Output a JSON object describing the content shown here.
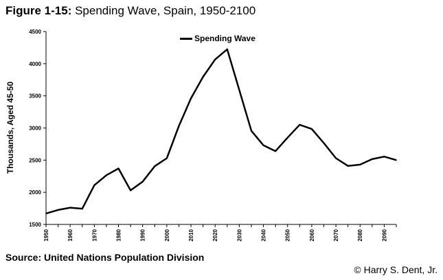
{
  "figure": {
    "label": "Figure 1-15:",
    "title": "Spending Wave, Spain, 1950-2100"
  },
  "source": "Source: United Nations Population Division",
  "copyright": "© Harry S. Dent, Jr.",
  "chart_data": {
    "type": "line",
    "title": "",
    "xlabel": "",
    "ylabel": "Thousands, Aged 45-50",
    "ylim": [
      1500,
      4500
    ],
    "yticks": [
      1500,
      2000,
      2500,
      3000,
      3500,
      4000,
      4500
    ],
    "xlim": [
      1950,
      2095
    ],
    "xticks": [
      1950,
      1960,
      1970,
      1980,
      1990,
      2000,
      2010,
      2020,
      2030,
      2040,
      2050,
      2060,
      2070,
      2080,
      2090
    ],
    "legend_position": "top-center",
    "grid": false,
    "series": [
      {
        "name": "Spending Wave",
        "color": "#000000",
        "x": [
          1950,
          1955,
          1960,
          1965,
          1970,
          1975,
          1980,
          1985,
          1990,
          1995,
          2000,
          2005,
          2010,
          2015,
          2020,
          2025,
          2030,
          2035,
          2040,
          2045,
          2050,
          2055,
          2060,
          2065,
          2070,
          2075,
          2080,
          2085,
          2090,
          2095
        ],
        "values": [
          1670,
          1725,
          1760,
          1745,
          2110,
          2265,
          2370,
          2030,
          2165,
          2405,
          2530,
          3030,
          3460,
          3795,
          4065,
          4225,
          3590,
          2955,
          2730,
          2640,
          2850,
          3050,
          2985,
          2765,
          2530,
          2410,
          2430,
          2515,
          2555,
          2500
        ]
      }
    ]
  }
}
